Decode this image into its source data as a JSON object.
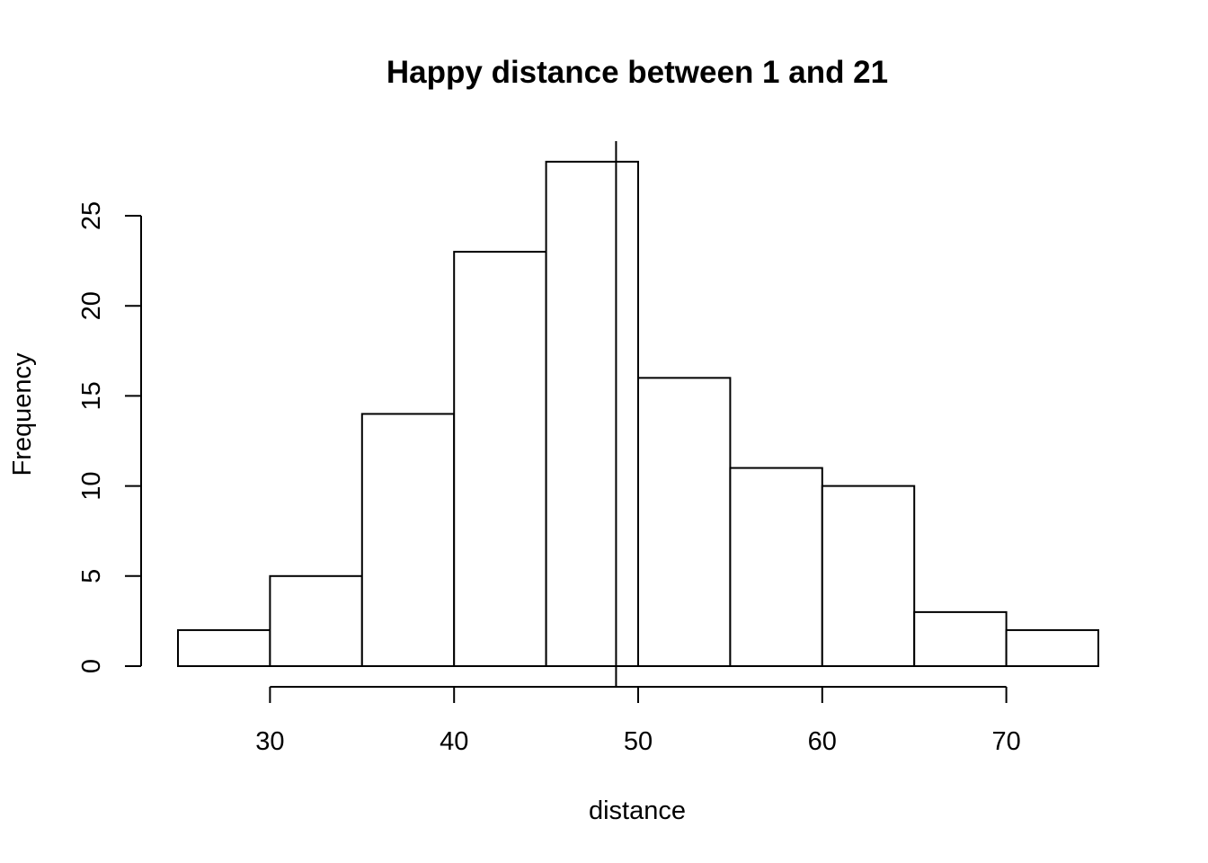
{
  "chart_data": {
    "type": "bar",
    "subtype": "histogram",
    "title": "Happy distance between 1 and 21",
    "xlabel": "distance",
    "ylabel": "Frequency",
    "bins": [
      {
        "start": 25,
        "end": 30,
        "count": 2
      },
      {
        "start": 30,
        "end": 35,
        "count": 5
      },
      {
        "start": 35,
        "end": 40,
        "count": 14
      },
      {
        "start": 40,
        "end": 45,
        "count": 23
      },
      {
        "start": 45,
        "end": 50,
        "count": 28
      },
      {
        "start": 50,
        "end": 55,
        "count": 16
      },
      {
        "start": 55,
        "end": 60,
        "count": 11
      },
      {
        "start": 60,
        "end": 65,
        "count": 10
      },
      {
        "start": 65,
        "end": 70,
        "count": 3
      },
      {
        "start": 70,
        "end": 75,
        "count": 2
      }
    ],
    "xticks": [
      30,
      40,
      50,
      60,
      70
    ],
    "xtick_labels": [
      "30",
      "40",
      "50",
      "60",
      "70"
    ],
    "yticks": [
      0,
      5,
      10,
      15,
      20,
      25
    ],
    "ytick_labels": [
      "0",
      "5",
      "10",
      "15",
      "20",
      "25"
    ],
    "xlim": [
      25,
      75
    ],
    "ylim": [
      0,
      28
    ],
    "vline": 48.8,
    "grid": false,
    "bar_fill": "#ffffff",
    "line_color": "#000000"
  }
}
